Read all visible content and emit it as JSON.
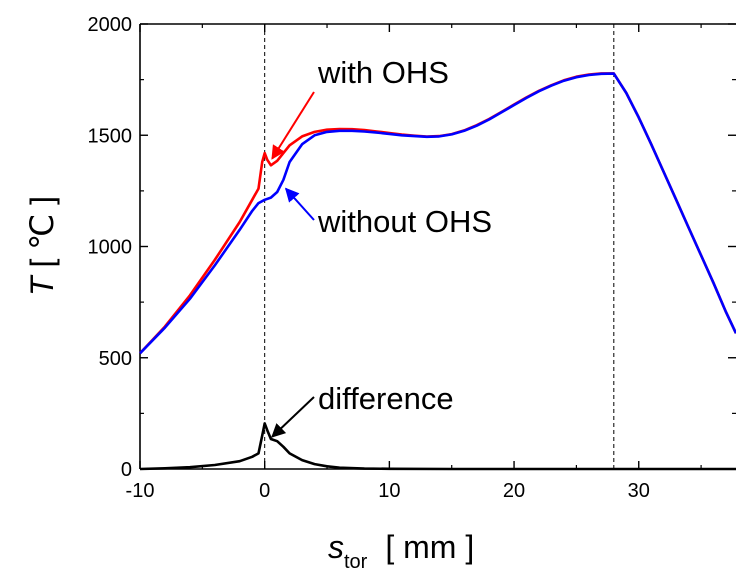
{
  "chart_data": {
    "type": "line",
    "xlabel": {
      "symbol": "s",
      "subscript": "tor",
      "unit": "[ mm ]"
    },
    "ylabel": {
      "symbol": "T",
      "unit": "[ ℃ ]"
    },
    "xlim": [
      -10,
      37.8
    ],
    "ylim": [
      0,
      2000
    ],
    "xticks": [
      -10,
      0,
      10,
      20,
      30
    ],
    "yticks": [
      0,
      500,
      1000,
      1500,
      2000
    ],
    "grid": false,
    "reference_lines_x": [
      0,
      28
    ],
    "series": [
      {
        "name": "with OHS",
        "color": "#ff0000",
        "x": [
          -10,
          -8,
          -6,
          -4,
          -2,
          -1,
          -0.5,
          -0.2,
          0,
          0.2,
          0.5,
          1,
          1.5,
          2,
          3,
          4,
          5,
          6,
          7,
          8,
          9,
          10,
          11,
          12,
          13,
          14,
          15,
          16,
          17,
          18,
          19,
          20,
          21,
          22,
          23,
          24,
          25,
          26,
          27,
          28,
          29,
          30,
          31,
          32,
          33,
          34,
          35,
          36,
          37,
          37.8
        ],
        "y": [
          520,
          640,
          780,
          940,
          1110,
          1210,
          1260,
          1380,
          1420,
          1390,
          1365,
          1385,
          1420,
          1455,
          1495,
          1515,
          1525,
          1528,
          1527,
          1523,
          1517,
          1510,
          1503,
          1498,
          1494,
          1496,
          1505,
          1522,
          1545,
          1573,
          1605,
          1638,
          1670,
          1700,
          1725,
          1747,
          1763,
          1773,
          1778,
          1778,
          1690,
          1580,
          1460,
          1335,
          1210,
          1085,
          960,
          835,
          705,
          610
        ]
      },
      {
        "name": "without OHS",
        "color": "#0000ff",
        "x": [
          -10,
          -8,
          -6,
          -4,
          -2,
          -1,
          -0.5,
          0,
          0.5,
          1,
          1.5,
          2,
          3,
          4,
          5,
          6,
          7,
          8,
          9,
          10,
          11,
          12,
          13,
          14,
          15,
          16,
          17,
          18,
          19,
          20,
          21,
          22,
          23,
          24,
          25,
          26,
          27,
          28,
          29,
          30,
          31,
          32,
          33,
          34,
          35,
          36,
          37,
          37.8
        ],
        "y": [
          520,
          635,
          765,
          915,
          1075,
          1160,
          1195,
          1210,
          1220,
          1245,
          1300,
          1380,
          1460,
          1500,
          1515,
          1520,
          1520,
          1517,
          1512,
          1506,
          1500,
          1496,
          1493,
          1495,
          1504,
          1520,
          1543,
          1571,
          1603,
          1636,
          1668,
          1698,
          1723,
          1745,
          1761,
          1771,
          1776,
          1777,
          1690,
          1580,
          1460,
          1335,
          1210,
          1085,
          960,
          835,
          705,
          610
        ]
      },
      {
        "name": "difference",
        "color": "#000000",
        "x": [
          -10,
          -8,
          -6,
          -4,
          -2,
          -1,
          -0.5,
          -0.2,
          0,
          0.2,
          0.5,
          1,
          1.5,
          2,
          3,
          4,
          5,
          6,
          8,
          10,
          15,
          20,
          25,
          28,
          30,
          35,
          37.8
        ],
        "y": [
          0,
          3,
          8,
          18,
          35,
          55,
          70,
          150,
          205,
          175,
          135,
          125,
          100,
          70,
          40,
          22,
          12,
          6,
          2,
          1,
          0,
          0,
          0,
          0,
          0,
          0,
          0
        ]
      }
    ],
    "annotations": [
      {
        "text": "with OHS",
        "target_series": "with OHS",
        "arrow_color": "#ff0000"
      },
      {
        "text": "without OHS",
        "target_series": "without OHS",
        "arrow_color": "#0000ff"
      },
      {
        "text": "difference",
        "target_series": "difference",
        "arrow_color": "#000000"
      }
    ]
  }
}
